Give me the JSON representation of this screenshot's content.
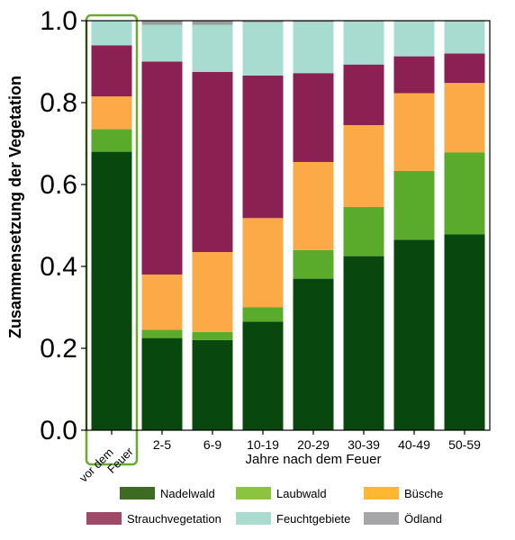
{
  "chart_data": {
    "type": "bar",
    "stacked": true,
    "ylabel": "Zusammensetzung der Vegetation",
    "xlabel": "Jahre nach dem Feuer",
    "ylim": [
      0,
      1.0
    ],
    "yticks": [
      "0.0",
      "0.2",
      "0.4",
      "0.6",
      "0.8",
      "1.0"
    ],
    "categories": [
      [
        "vor dem",
        "Feuer"
      ],
      "2-5",
      "6-9",
      "10-19",
      "20-29",
      "30-39",
      "40-49",
      "50-59"
    ],
    "highlight_category_index": 0,
    "legend_placement": "bottom",
    "series": [
      {
        "name": "Nadelwald",
        "color": "#08480e",
        "legend_color": "#3d6b22",
        "values": [
          0.68,
          0.225,
          0.22,
          0.265,
          0.37,
          0.425,
          0.465,
          0.478
        ]
      },
      {
        "name": "Laubwald",
        "color": "#5aaa2c",
        "legend_color": "#8cc43f",
        "values": [
          0.055,
          0.02,
          0.02,
          0.035,
          0.07,
          0.12,
          0.168,
          0.2
        ]
      },
      {
        "name": "Büsche",
        "color": "#fbaa47",
        "legend_color": "#fdb733",
        "values": [
          0.08,
          0.135,
          0.195,
          0.218,
          0.215,
          0.2,
          0.19,
          0.17
        ]
      },
      {
        "name": "Strauchvegetation",
        "color": "#8a2152",
        "legend_color": "#a04868",
        "values": [
          0.125,
          0.52,
          0.44,
          0.348,
          0.217,
          0.148,
          0.09,
          0.072
        ]
      },
      {
        "name": "Feuchtgebiete",
        "color": "#a8dcd1",
        "legend_color": "#aadbcf",
        "values": [
          0.06,
          0.09,
          0.115,
          0.13,
          0.125,
          0.105,
          0.085,
          0.078
        ]
      },
      {
        "name": "Ödland",
        "color": "#9c9c9c",
        "legend_color": "#a6a6a8",
        "values": [
          0.0,
          0.01,
          0.01,
          0.004,
          0.003,
          0.002,
          0.002,
          0.002
        ]
      }
    ],
    "grid": false,
    "highlight_color": "#6aab2e"
  }
}
